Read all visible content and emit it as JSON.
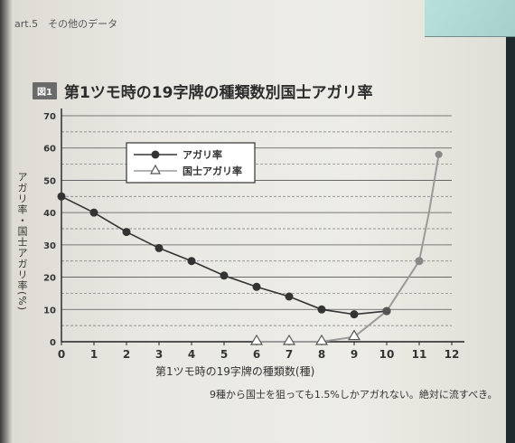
{
  "header": {
    "text": "art.5　その他のデータ"
  },
  "figure": {
    "tag": "図1",
    "note": "9種から国士を狙っても1.5%しかアガれない。絶対に流すべき。"
  },
  "chart_data": {
    "type": "line",
    "title": "第1ツモ時の19字牌の種類数別国士アガリ率",
    "xlabel": "第1ツモ時の19字牌の種類数(種)",
    "ylabel": "アガリ率・国士アガリ率(%)",
    "x": [
      0,
      1,
      2,
      3,
      4,
      5,
      6,
      7,
      8,
      9,
      10,
      11,
      12
    ],
    "xlim": [
      0,
      12
    ],
    "ylim": [
      0,
      70
    ],
    "yticks": [
      0,
      10,
      20,
      30,
      40,
      50,
      60,
      70
    ],
    "grid": true,
    "legend_position": "top-left",
    "series": [
      {
        "name": "アガリ率",
        "marker": "circle",
        "color": "#333333",
        "points": [
          [
            0,
            45
          ],
          [
            1,
            40
          ],
          [
            2,
            34
          ],
          [
            3,
            29
          ],
          [
            4,
            25
          ],
          [
            5,
            20.5
          ],
          [
            6,
            17
          ],
          [
            7,
            14
          ],
          [
            8,
            10
          ],
          [
            9,
            8.5
          ],
          [
            10,
            9.5
          ]
        ]
      },
      {
        "name": "国士アガリ率",
        "marker": "triangle",
        "color": "#9a9a9a",
        "points": [
          [
            6,
            0
          ],
          [
            7,
            0
          ],
          [
            8,
            0
          ],
          [
            9,
            1.5
          ],
          [
            10,
            9.5
          ],
          [
            11,
            25
          ],
          [
            11.3,
            40
          ],
          [
            11.6,
            58
          ]
        ]
      }
    ]
  }
}
